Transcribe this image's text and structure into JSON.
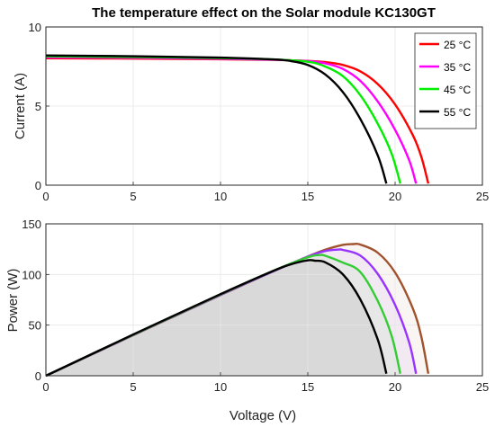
{
  "chart_data": [
    {
      "type": "line",
      "title": "The temperature effect on the Solar module KC130GT",
      "xlabel": "",
      "ylabel": "Current (A)",
      "xlim": [
        0,
        25
      ],
      "ylim": [
        0,
        10
      ],
      "xticks": [
        "0",
        "5",
        "10",
        "15",
        "20",
        "25"
      ],
      "yticks": [
        "0",
        "5",
        "10"
      ],
      "grid": true,
      "legend_position": "top-right",
      "series": [
        {
          "name": "25 °C",
          "color": "#ff0000",
          "points": [
            [
              0,
              8.02
            ],
            [
              5,
              8.0
            ],
            [
              10,
              7.96
            ],
            [
              13,
              7.92
            ],
            [
              15,
              7.85
            ],
            [
              16,
              7.78
            ],
            [
              17,
              7.6
            ],
            [
              18,
              7.2
            ],
            [
              19,
              6.4
            ],
            [
              20,
              5.1
            ],
            [
              21,
              3.2
            ],
            [
              21.5,
              1.8
            ],
            [
              21.9,
              0.1
            ]
          ]
        },
        {
          "name": "35 °C",
          "color": "#ff00ff",
          "points": [
            [
              0,
              8.08
            ],
            [
              5,
              8.05
            ],
            [
              10,
              7.99
            ],
            [
              13,
              7.93
            ],
            [
              15,
              7.84
            ],
            [
              16,
              7.7
            ],
            [
              17,
              7.35
            ],
            [
              18,
              6.6
            ],
            [
              19,
              5.3
            ],
            [
              20,
              3.5
            ],
            [
              20.8,
              1.6
            ],
            [
              21.2,
              0.1
            ]
          ]
        },
        {
          "name": "45 °C",
          "color": "#00ee00",
          "points": [
            [
              0,
              8.14
            ],
            [
              5,
              8.1
            ],
            [
              10,
              8.03
            ],
            [
              13,
              7.95
            ],
            [
              15,
              7.8
            ],
            [
              16,
              7.5
            ],
            [
              17,
              6.9
            ],
            [
              18,
              5.7
            ],
            [
              19,
              3.9
            ],
            [
              19.8,
              2.0
            ],
            [
              20.3,
              0.1
            ]
          ]
        },
        {
          "name": "55 °C",
          "color": "#000000",
          "points": [
            [
              0,
              8.2
            ],
            [
              5,
              8.15
            ],
            [
              10,
              8.06
            ],
            [
              13,
              7.95
            ],
            [
              14,
              7.85
            ],
            [
              15,
              7.6
            ],
            [
              16,
              7.0
            ],
            [
              17,
              5.9
            ],
            [
              18,
              4.2
            ],
            [
              19,
              1.9
            ],
            [
              19.5,
              0.1
            ]
          ]
        }
      ]
    },
    {
      "type": "line",
      "title": "",
      "xlabel": "Voltage (V)",
      "ylabel": "Power (W)",
      "xlim": [
        0,
        25
      ],
      "ylim": [
        0,
        150
      ],
      "xticks": [
        "0",
        "5",
        "10",
        "15",
        "20",
        "25"
      ],
      "yticks": [
        "0",
        "50",
        "100",
        "150"
      ],
      "grid": true,
      "series": [
        {
          "color": "#a0522d",
          "points": [
            [
              0,
              0
            ],
            [
              5,
              40
            ],
            [
              10,
              79.6
            ],
            [
              13,
              103
            ],
            [
              15,
              117.8
            ],
            [
              16,
              124.5
            ],
            [
              17,
              129.2
            ],
            [
              17.6,
              130
            ],
            [
              18,
              129.6
            ],
            [
              19,
              121.6
            ],
            [
              20,
              102
            ],
            [
              21,
              67.2
            ],
            [
              21.5,
              38.7
            ],
            [
              21.9,
              2
            ]
          ]
        },
        {
          "color": "#9933ff",
          "points": [
            [
              0,
              0
            ],
            [
              5,
              40.2
            ],
            [
              10,
              79.9
            ],
            [
              13,
              103
            ],
            [
              15,
              117.6
            ],
            [
              16,
              123.2
            ],
            [
              16.8,
              124.6
            ],
            [
              17,
              124.3
            ],
            [
              18,
              118.8
            ],
            [
              19,
              100.7
            ],
            [
              20,
              70
            ],
            [
              20.8,
              33.3
            ],
            [
              21.2,
              2
            ]
          ]
        },
        {
          "color": "#33cc33",
          "points": [
            [
              0,
              0
            ],
            [
              5,
              40.5
            ],
            [
              10,
              80.3
            ],
            [
              13,
              103.4
            ],
            [
              15,
              117
            ],
            [
              15.7,
              119.2
            ],
            [
              16,
              118.5
            ],
            [
              17,
              111.8
            ],
            [
              18,
              102.6
            ],
            [
              19,
              74.1
            ],
            [
              19.8,
              39.6
            ],
            [
              20.3,
              2
            ]
          ]
        },
        {
          "color": "#000000",
          "points": [
            [
              0,
              0
            ],
            [
              5,
              40.7
            ],
            [
              10,
              80.6
            ],
            [
              13,
              103.4
            ],
            [
              14,
              109.9
            ],
            [
              15,
              114
            ],
            [
              15.4,
              113.6
            ],
            [
              16,
              112
            ],
            [
              17,
              100.3
            ],
            [
              18,
              75.6
            ],
            [
              19,
              36.1
            ],
            [
              19.5,
              2
            ]
          ]
        }
      ]
    }
  ]
}
